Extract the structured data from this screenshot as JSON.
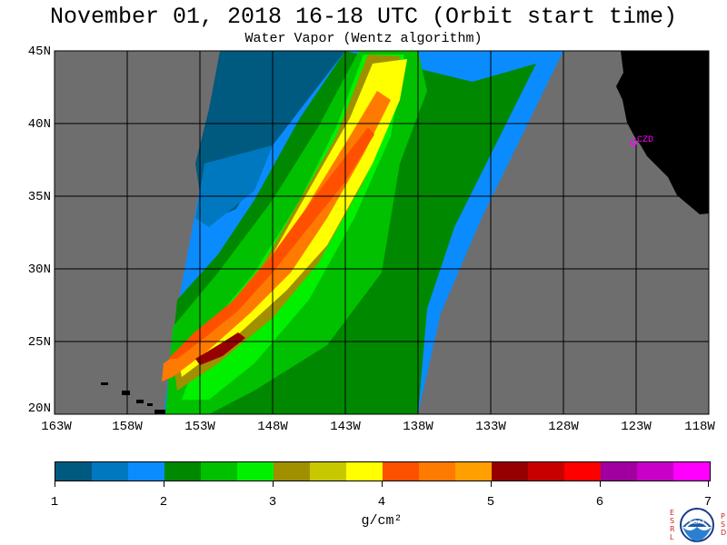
{
  "title": "November 01, 2018  16-18 UTC  (Orbit start time)",
  "subtitle": "Water Vapor (Wentz algorithm)",
  "map": {
    "lat_labels": [
      "45N",
      "40N",
      "35N",
      "30N",
      "25N",
      "20N"
    ],
    "lon_labels": [
      "163W",
      "158W",
      "153W",
      "148W",
      "143W",
      "138W",
      "133W",
      "128W",
      "123W",
      "118W"
    ],
    "station_label": "CZD",
    "colors": {
      "no_data": "#6e6e6e",
      "land": "#000000",
      "grid": "#000000",
      "station": "#ff00ff"
    }
  },
  "colorbar": {
    "ticks": [
      "1",
      "2",
      "3",
      "4",
      "5",
      "6",
      "7"
    ],
    "units": "g/cm²",
    "colors": [
      "#005a80",
      "#0078c0",
      "#0a8cff",
      "#008800",
      "#00c000",
      "#00f000",
      "#a09000",
      "#c8c800",
      "#ffff00",
      "#ff5000",
      "#ff7a00",
      "#ffa000",
      "#960000",
      "#c80000",
      "#ff0000",
      "#a000a0",
      "#c800c8",
      "#ff00ff"
    ]
  },
  "logo": {
    "left_letters": [
      "E",
      "S",
      "R",
      "L"
    ],
    "right_letters": [
      "P",
      "S",
      "D"
    ],
    "name": "NOAA",
    "icon": "noaa-logo-icon"
  }
}
